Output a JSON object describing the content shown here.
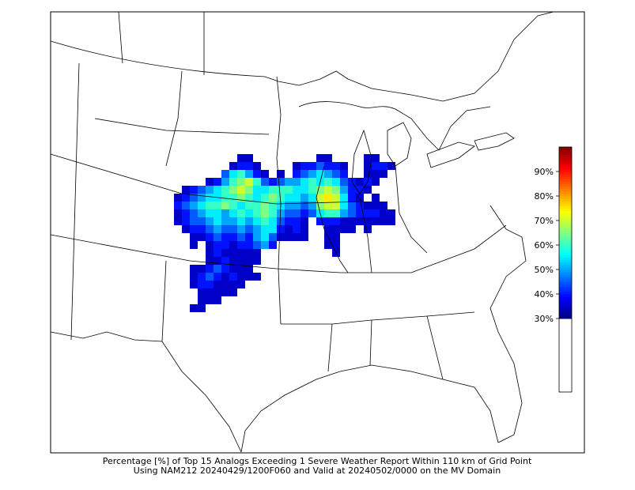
{
  "caption": [
    "Percentage [%] of Top 15 Analogs Exceeding 1 Severe Weather Report Within 110 km of Grid Point",
    "Using NAM212 20240429/1200F060 and Valid at 20240502/0000 on the MV Domain"
  ],
  "colorbar": {
    "lim": [
      0,
      100
    ],
    "color_range": [
      30,
      100
    ],
    "ticks": [
      {
        "value": 30,
        "label": "30%"
      },
      {
        "value": 40,
        "label": "40%"
      },
      {
        "value": 50,
        "label": "50%"
      },
      {
        "value": 60,
        "label": "60%"
      },
      {
        "value": 70,
        "label": "70%"
      },
      {
        "value": 80,
        "label": "80%"
      },
      {
        "value": 90,
        "label": "90%"
      }
    ]
  },
  "field": {
    "rows": [
      [
        null,
        null,
        null,
        null,
        null,
        null,
        null,
        null,
        35,
        35,
        null,
        null,
        null,
        null,
        null,
        null,
        null,
        null,
        35,
        35,
        null,
        null,
        null,
        null,
        35,
        35,
        null,
        null
      ],
      [
        null,
        null,
        null,
        null,
        null,
        null,
        null,
        35,
        40,
        40,
        35,
        null,
        null,
        null,
        null,
        35,
        40,
        40,
        45,
        40,
        40,
        35,
        null,
        null,
        35,
        40,
        40,
        35
      ],
      [
        null,
        null,
        null,
        null,
        null,
        null,
        45,
        55,
        60,
        50,
        40,
        35,
        null,
        35,
        null,
        40,
        45,
        50,
        55,
        50,
        45,
        40,
        null,
        null,
        35,
        35,
        35,
        null
      ],
      [
        null,
        null,
        null,
        null,
        35,
        40,
        50,
        60,
        65,
        70,
        60,
        45,
        40,
        45,
        50,
        50,
        55,
        60,
        55,
        60,
        55,
        45,
        40,
        35,
        40,
        35,
        null,
        null
      ],
      [
        null,
        35,
        40,
        45,
        50,
        55,
        60,
        65,
        70,
        65,
        55,
        55,
        60,
        60,
        60,
        55,
        55,
        60,
        65,
        70,
        65,
        50,
        40,
        40,
        35,
        null,
        null,
        null
      ],
      [
        35,
        40,
        45,
        50,
        55,
        55,
        60,
        60,
        65,
        60,
        55,
        60,
        65,
        60,
        55,
        55,
        50,
        55,
        70,
        75,
        70,
        55,
        40,
        35,
        null,
        35,
        null,
        null
      ],
      [
        40,
        45,
        50,
        55,
        60,
        60,
        65,
        60,
        55,
        60,
        60,
        65,
        60,
        55,
        50,
        50,
        45,
        50,
        65,
        70,
        70,
        55,
        45,
        40,
        35,
        35,
        35,
        null
      ],
      [
        35,
        40,
        45,
        50,
        55,
        55,
        50,
        55,
        60,
        55,
        60,
        65,
        60,
        50,
        45,
        45,
        40,
        45,
        55,
        60,
        60,
        50,
        45,
        40,
        40,
        40,
        35,
        35
      ],
      [
        35,
        40,
        45,
        45,
        50,
        55,
        50,
        50,
        55,
        50,
        55,
        60,
        55,
        45,
        40,
        40,
        35,
        null,
        40,
        40,
        40,
        35,
        35,
        35,
        35,
        35,
        35,
        35
      ],
      [
        null,
        35,
        40,
        40,
        45,
        50,
        45,
        45,
        50,
        45,
        50,
        55,
        55,
        40,
        35,
        40,
        35,
        null,
        null,
        35,
        35,
        35,
        35,
        null,
        35,
        null,
        null,
        null
      ],
      [
        null,
        null,
        35,
        35,
        40,
        45,
        40,
        40,
        45,
        40,
        50,
        55,
        45,
        35,
        35,
        35,
        35,
        null,
        null,
        35,
        35,
        null,
        null,
        null,
        null,
        null,
        null,
        null
      ],
      [
        null,
        null,
        35,
        null,
        35,
        40,
        40,
        35,
        40,
        40,
        45,
        50,
        40,
        null,
        null,
        null,
        null,
        null,
        null,
        35,
        35,
        null,
        null,
        null,
        null,
        null,
        null,
        null
      ],
      [
        null,
        null,
        null,
        null,
        35,
        40,
        35,
        35,
        35,
        35,
        35,
        null,
        null,
        null,
        null,
        null,
        null,
        null,
        null,
        null,
        35,
        null,
        null,
        null,
        null,
        null,
        null,
        null
      ],
      [
        null,
        null,
        null,
        null,
        35,
        35,
        40,
        35,
        35,
        35,
        35,
        null,
        null,
        null,
        null,
        null,
        null,
        null,
        null,
        null,
        null,
        null,
        null,
        null,
        null,
        null,
        null,
        null
      ],
      [
        null,
        null,
        35,
        35,
        40,
        45,
        40,
        35,
        35,
        35,
        null,
        null,
        null,
        null,
        null,
        null,
        null,
        null,
        null,
        null,
        null,
        null,
        null,
        null,
        null,
        null,
        null,
        null
      ],
      [
        null,
        null,
        35,
        40,
        45,
        40,
        35,
        40,
        35,
        35,
        35,
        null,
        null,
        null,
        null,
        null,
        null,
        null,
        null,
        null,
        null,
        null,
        null,
        null,
        null,
        null,
        null,
        null
      ],
      [
        null,
        null,
        35,
        40,
        40,
        35,
        35,
        35,
        35,
        null,
        null,
        null,
        null,
        null,
        null,
        null,
        null,
        null,
        null,
        null,
        null,
        null,
        null,
        null,
        null,
        null,
        null,
        null
      ],
      [
        null,
        null,
        null,
        35,
        35,
        35,
        35,
        35,
        null,
        null,
        null,
        null,
        null,
        null,
        null,
        null,
        null,
        null,
        null,
        null,
        null,
        null,
        null,
        null,
        null,
        null,
        null,
        null
      ],
      [
        null,
        null,
        null,
        35,
        35,
        35,
        null,
        null,
        null,
        null,
        null,
        null,
        null,
        null,
        null,
        null,
        null,
        null,
        null,
        null,
        null,
        null,
        null,
        null,
        null,
        null,
        null,
        null
      ],
      [
        null,
        null,
        35,
        35,
        null,
        null,
        null,
        null,
        null,
        null,
        null,
        null,
        null,
        null,
        null,
        null,
        null,
        null,
        null,
        null,
        null,
        null,
        null,
        null,
        null,
        null,
        null,
        null
      ]
    ]
  }
}
